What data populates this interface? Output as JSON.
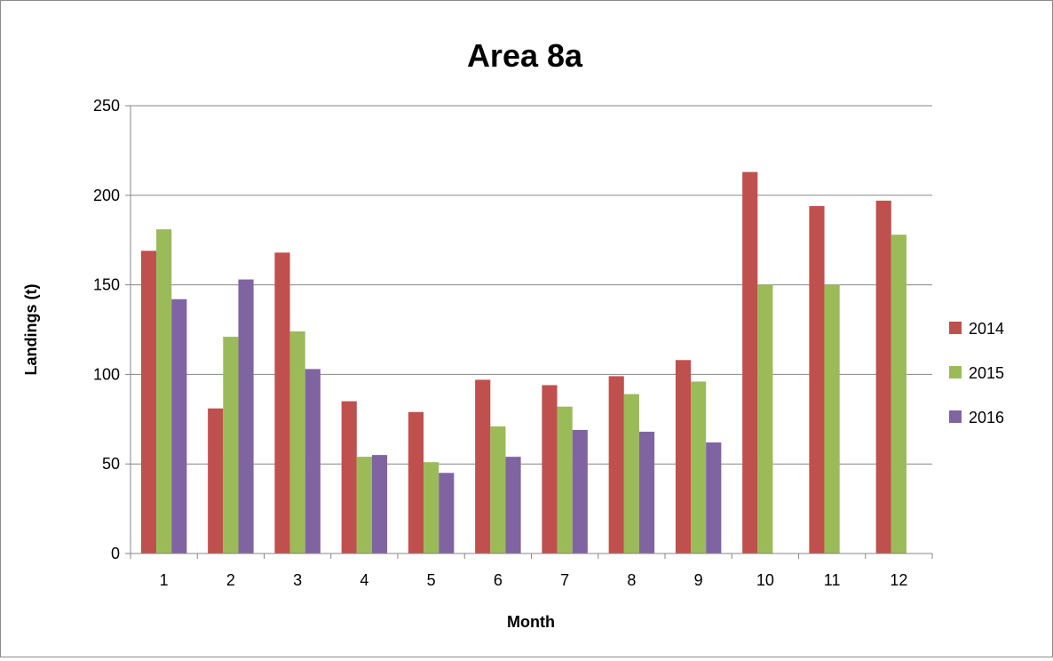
{
  "chart_data": {
    "type": "bar",
    "title": "Area 8a",
    "xlabel": "Month",
    "ylabel": "Landings (t)",
    "ylim": [
      0,
      250
    ],
    "yticks": [
      0,
      50,
      100,
      150,
      200,
      250
    ],
    "categories": [
      "1",
      "2",
      "3",
      "4",
      "5",
      "6",
      "7",
      "8",
      "9",
      "10",
      "11",
      "12"
    ],
    "grid": true,
    "legend_position": "right",
    "series": [
      {
        "name": "2014",
        "color": "#c0504d",
        "values": [
          169,
          81,
          168,
          85,
          79,
          97,
          94,
          99,
          108,
          213,
          194,
          197
        ]
      },
      {
        "name": "2015",
        "color": "#9bbb59",
        "values": [
          181,
          121,
          124,
          54,
          51,
          71,
          82,
          89,
          96,
          150,
          150,
          178
        ]
      },
      {
        "name": "2016",
        "color": "#8064a2",
        "values": [
          142,
          153,
          103,
          55,
          45,
          54,
          69,
          68,
          62,
          null,
          null,
          null
        ]
      }
    ]
  }
}
